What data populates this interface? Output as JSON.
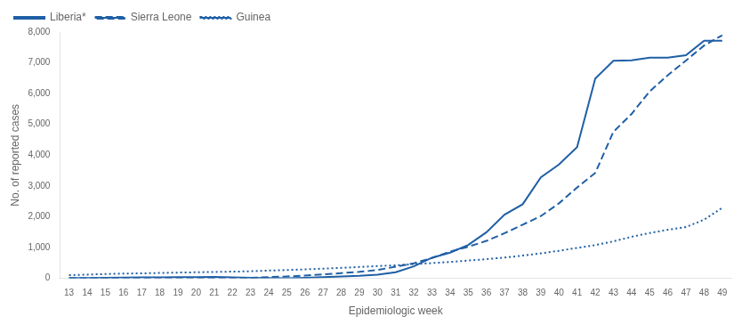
{
  "chart_data": {
    "type": "line",
    "x": [
      13,
      14,
      15,
      16,
      17,
      18,
      19,
      20,
      21,
      22,
      23,
      24,
      25,
      26,
      27,
      28,
      29,
      30,
      31,
      32,
      33,
      34,
      35,
      36,
      37,
      38,
      39,
      40,
      41,
      42,
      43,
      44,
      45,
      46,
      47,
      48,
      49
    ],
    "series": [
      {
        "name": "Liberia*",
        "color": "#1f5fa6",
        "line_style": "solid",
        "values": [
          8,
          13,
          20,
          25,
          30,
          35,
          40,
          42,
          45,
          30,
          20,
          10,
          5,
          20,
          40,
          60,
          80,
          120,
          200,
          390,
          670,
          834,
          1082,
          1495,
          2069,
          2407,
          3280,
          3696,
          4262,
          6489,
          7069,
          7082,
          7168,
          7168,
          7246,
          7719,
          7719
        ]
      },
      {
        "name": "Sierra Leone",
        "color": "#1f5fa6",
        "line_style": "dashed",
        "values": [
          0,
          0,
          0,
          0,
          0,
          0,
          0,
          0,
          0,
          9,
          18,
          40,
          60,
          90,
          130,
          170,
          210,
          270,
          380,
          490,
          660,
          870,
          1026,
          1216,
          1465,
          1743,
          2021,
          2437,
          2950,
          3424,
          4759,
          5338,
          6073,
          6599,
          7076,
          7561,
          7897
        ]
      },
      {
        "name": "Guinea",
        "color": "#1f5fa6",
        "line_style": "dotted",
        "values": [
          103,
          122,
          140,
          155,
          162,
          175,
          186,
          197,
          208,
          218,
          230,
          252,
          270,
          291,
          315,
          340,
          370,
          398,
          425,
          460,
          495,
          533,
          579,
          622,
          677,
          739,
          812,
          894,
          987,
          1081,
          1199,
          1350,
          1472,
          1579,
          1667,
          1906,
          2292
        ]
      }
    ],
    "xlabel": "Epidemiologic week",
    "ylabel": "No. of reported cases",
    "xlim": [
      12.5,
      49.5
    ],
    "xticks": [
      13,
      14,
      15,
      16,
      17,
      18,
      19,
      20,
      21,
      22,
      23,
      24,
      25,
      26,
      27,
      28,
      29,
      30,
      31,
      32,
      33,
      34,
      35,
      36,
      37,
      38,
      39,
      40,
      41,
      42,
      43,
      44,
      45,
      46,
      47,
      48,
      49
    ],
    "ylim": [
      0,
      8000
    ],
    "yticks": [
      0,
      {
        "value": 1000,
        "label": "1,000"
      },
      {
        "value": 2000,
        "label": "2,000"
      },
      {
        "value": 3000,
        "label": "3,000"
      },
      {
        "value": 4000,
        "label": "4,000"
      },
      {
        "value": 5000,
        "label": "5,000"
      },
      {
        "value": 6000,
        "label": "6,000"
      },
      {
        "value": 7000,
        "label": "7,000"
      },
      {
        "value": 8000,
        "label": "8,000"
      }
    ],
    "grid": false,
    "legend": "upper left"
  }
}
